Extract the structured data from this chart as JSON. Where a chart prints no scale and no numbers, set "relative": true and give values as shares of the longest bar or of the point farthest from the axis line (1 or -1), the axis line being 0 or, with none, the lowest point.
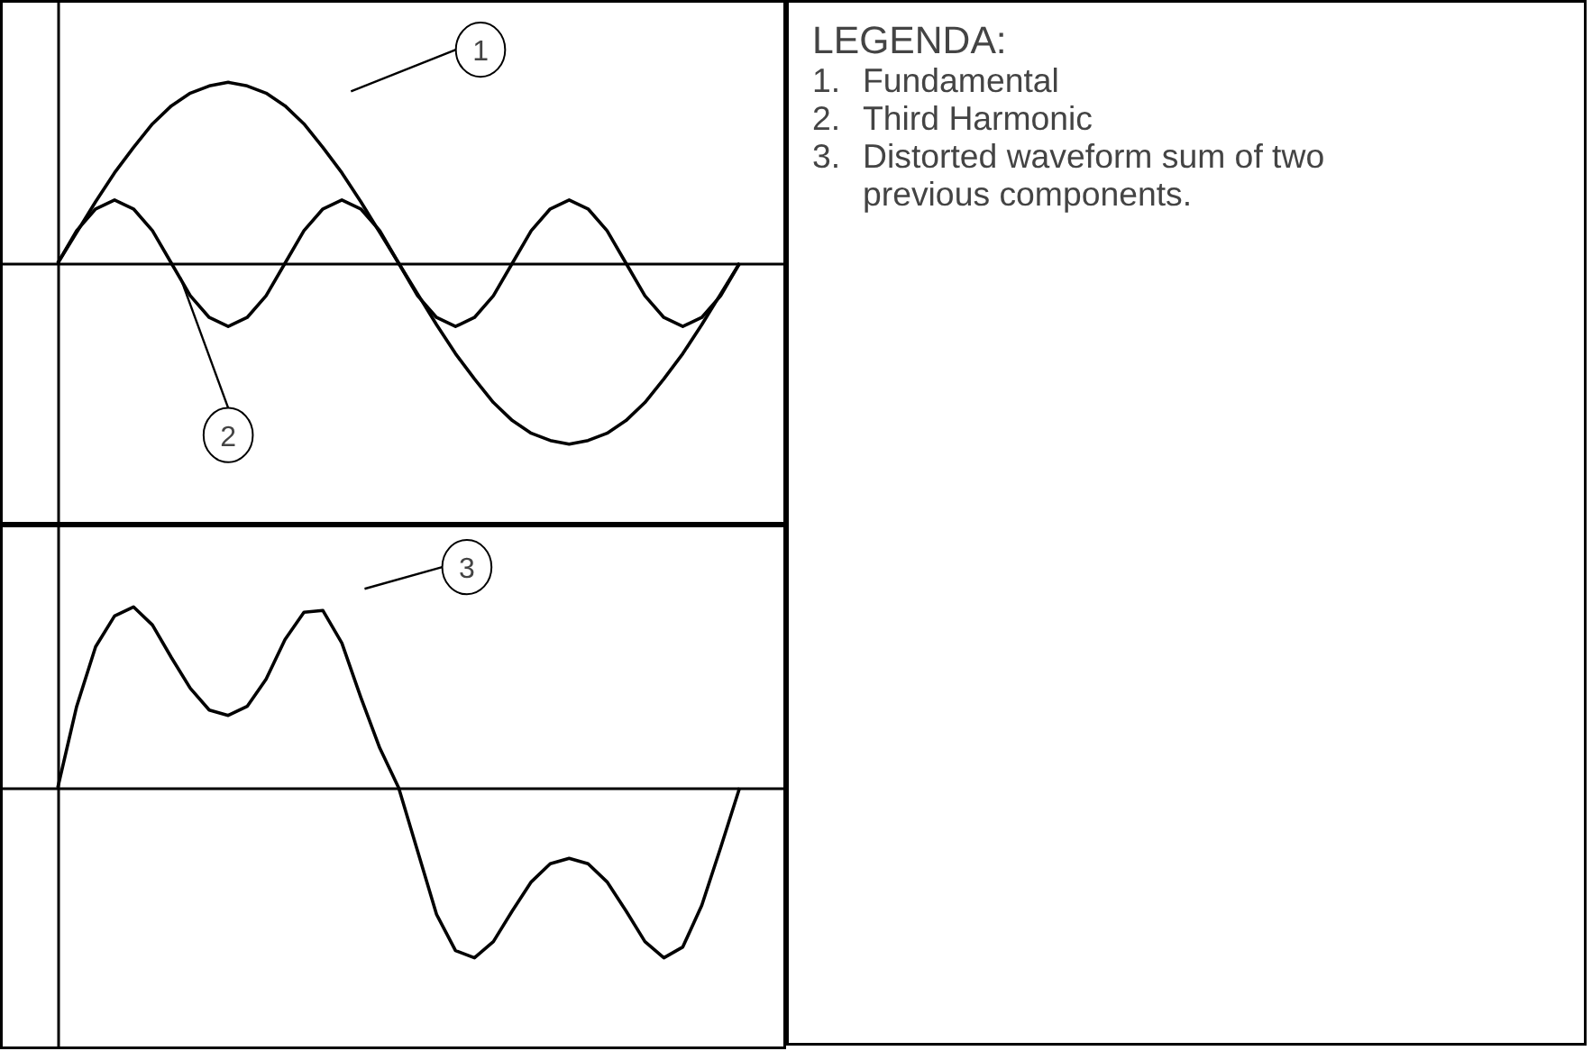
{
  "chart_data": [
    {
      "type": "line",
      "relative": true,
      "categories": [
        null,
        null,
        null,
        null,
        null,
        null,
        null,
        null,
        null,
        null,
        null,
        null,
        null,
        null,
        null,
        null,
        null,
        null,
        null,
        null,
        null,
        null,
        null,
        null,
        null,
        null,
        null,
        null,
        null,
        null,
        null,
        null,
        null,
        null,
        null,
        null,
        null
      ],
      "series": [
        {
          "name": "1",
          "color": "#000000",
          "values": [
            0,
            0.17,
            0.34,
            0.5,
            0.64,
            0.77,
            0.87,
            0.94,
            0.98,
            1,
            0.98,
            0.94,
            0.87,
            0.77,
            0.64,
            0.5,
            0.34,
            0.17,
            0,
            -0.17,
            -0.34,
            -0.5,
            -0.64,
            -0.77,
            -0.87,
            -0.94,
            -0.98,
            -1,
            -0.98,
            -0.94,
            -0.87,
            -0.77,
            -0.64,
            -0.5,
            -0.34,
            -0.17,
            0
          ]
        },
        {
          "name": "2",
          "color": "#000000",
          "values": [
            0,
            0.18,
            0.3,
            0.35,
            0.3,
            0.18,
            0,
            -0.18,
            -0.3,
            -0.35,
            -0.3,
            -0.18,
            0,
            0.18,
            0.3,
            0.35,
            0.3,
            0.18,
            0,
            -0.18,
            -0.3,
            -0.35,
            -0.3,
            -0.18,
            0,
            0.18,
            0.3,
            0.35,
            0.3,
            0.18,
            0,
            -0.18,
            -0.3,
            -0.35,
            -0.3,
            -0.18,
            0
          ]
        }
      ]
    },
    {
      "type": "line",
      "relative": true,
      "categories": [
        null,
        null,
        null,
        null,
        null,
        null,
        null,
        null,
        null,
        null,
        null,
        null,
        null,
        null,
        null,
        null,
        null,
        null,
        null,
        null,
        null,
        null,
        null,
        null,
        null,
        null,
        null,
        null,
        null,
        null,
        null,
        null,
        null,
        null,
        null,
        null,
        null
      ],
      "series": [
        {
          "name": "3",
          "color": "#000000",
          "values": [
            0,
            0.45,
            0.78,
            0.95,
            1,
            0.9,
            0.72,
            0.55,
            0.43,
            0.4,
            0.45,
            0.6,
            0.82,
            0.97,
            0.98,
            0.8,
            0.5,
            0.22,
            0,
            -0.35,
            -0.7,
            -0.9,
            -0.94,
            -0.85,
            -0.68,
            -0.52,
            -0.42,
            -0.39,
            -0.42,
            -0.52,
            -0.68,
            -0.85,
            -0.94,
            -0.88,
            -0.65,
            -0.33,
            0
          ]
        }
      ]
    },
    {
      "type": "other",
      "title": "LEGENDA:",
      "annotations": [
        "1. Fundamental",
        "2. Third Harmonic",
        "3. Distorted waveform sum of two previous components."
      ]
    }
  ]
}
